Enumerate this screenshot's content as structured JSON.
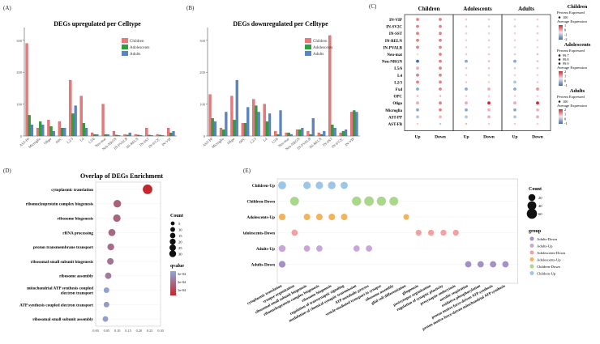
{
  "colors": {
    "children": "#e8797b",
    "adolescents": "#2e9e3e",
    "adults": "#5b84c4",
    "children_dark": "#b63a3c",
    "adolescents_dark": "#1f6e2b",
    "adults_dark": "#3c62a0",
    "dot_low": "#8ea6d6",
    "dot_high": "#c2272d",
    "scale_hi": "#d6262e",
    "scale_lo": "#3b6fb6"
  },
  "panel_labels": {
    "a": "(A)",
    "b": "(B)",
    "c": "(C)",
    "d": "(D)",
    "e": "(E)"
  },
  "chart_data": [
    {
      "id": "A",
      "type": "bar",
      "title": "DEGs upregulated per Celltype",
      "legend": [
        "Children",
        "Adolescents",
        "Adults"
      ],
      "ylim": [
        0,
        330
      ],
      "yticks": [
        0,
        100,
        200,
        300
      ],
      "categories": [
        "AST-PP",
        "Microglia",
        "Oligo",
        "OPC",
        "L2/3",
        "L4",
        "L5/6",
        "Neu-mat",
        "Neu-NRGN",
        "IN-PVALB",
        "IN-RELN",
        "IN-SST",
        "IN-SV2C",
        "IN-VIP"
      ],
      "series": [
        {
          "name": "Children",
          "values": [
            290,
            25,
            50,
            45,
            175,
            125,
            10,
            100,
            15,
            5,
            5,
            25,
            5,
            25
          ]
        },
        {
          "name": "Adolescents",
          "values": [
            65,
            45,
            30,
            25,
            70,
            40,
            5,
            5,
            3,
            3,
            3,
            3,
            3,
            10
          ]
        },
        {
          "name": "Adults",
          "values": [
            35,
            35,
            15,
            25,
            95,
            25,
            5,
            5,
            2,
            10,
            2,
            2,
            2,
            15
          ]
        }
      ]
    },
    {
      "id": "B",
      "type": "bar",
      "title": "DEGs downregulated per Celltype",
      "legend": [
        "Children",
        "Adolescents",
        "Adults"
      ],
      "ylim": [
        0,
        330
      ],
      "yticks": [
        0,
        100,
        200,
        300
      ],
      "categories": [
        "AST-PP",
        "Microglia",
        "Oligo",
        "OPC",
        "L2/3",
        "L4",
        "L5/6",
        "Neu-mat",
        "Neu-NRGN",
        "IN-PVALB",
        "IN-RELN",
        "IN-SST",
        "IN-SV2C",
        "IN-VIP"
      ],
      "series": [
        {
          "name": "Children",
          "values": [
            130,
            25,
            125,
            40,
            115,
            100,
            15,
            10,
            20,
            15,
            10,
            315,
            10,
            75
          ]
        },
        {
          "name": "Adolescents",
          "values": [
            55,
            20,
            50,
            40,
            95,
            45,
            5,
            10,
            20,
            5,
            5,
            35,
            15,
            80
          ]
        },
        {
          "name": "Adults",
          "values": [
            45,
            75,
            175,
            90,
            75,
            70,
            80,
            5,
            25,
            55,
            15,
            25,
            20,
            75
          ]
        }
      ]
    },
    {
      "id": "C",
      "type": "dotplot",
      "groups": [
        "Children",
        "Adolescents",
        "Adults"
      ],
      "columns": [
        "Up",
        "Down"
      ],
      "rows": [
        "IN-VIP",
        "IN-SV2C",
        "IN-SST",
        "IN-RELN",
        "IN-PVALB",
        "Neu-mat",
        "Neu-NRGN",
        "L5/6",
        "L4",
        "L2/3",
        "Fxd",
        "OPC",
        "Oligo",
        "Microglia",
        "AST-PP",
        "AST-FB"
      ],
      "expression": [
        [
          1,
          1,
          0.2,
          0.2,
          0.1,
          0.2
        ],
        [
          1,
          1,
          0.2,
          0.2,
          0.2,
          0.2
        ],
        [
          1,
          1,
          0.1,
          0.1,
          0.1,
          0.2
        ],
        [
          1,
          1,
          0.1,
          0.2,
          0.1,
          0.1
        ],
        [
          1,
          1,
          0.1,
          0.1,
          0.1,
          0.1
        ],
        [
          0,
          1,
          0.2,
          0.2,
          0.2,
          0.3
        ],
        [
          -2,
          1,
          -1,
          0.3,
          -1,
          0.3
        ],
        [
          0.5,
          1,
          0.2,
          0.2,
          0.2,
          0.2
        ],
        [
          1,
          1,
          0.1,
          0.1,
          0.1,
          0.1
        ],
        [
          1,
          1,
          0.2,
          0.1,
          -0.5,
          0.2
        ],
        [
          -1,
          1,
          -1,
          0.5,
          -1,
          0.8
        ],
        [
          0.3,
          0.3,
          0.1,
          0.1,
          0.1,
          0.1
        ],
        [
          0.5,
          1,
          0.5,
          2,
          0.5,
          2
        ],
        [
          -1,
          1,
          -1,
          0.4,
          -1,
          0.4
        ],
        [
          -0.5,
          0.4,
          -0.5,
          0.5,
          -0.5,
          0.5
        ],
        [
          0.1,
          -0.3,
          0.3,
          0.1,
          0.1,
          0.1
        ]
      ],
      "legend": {
        "children_title": "Children",
        "adolescents_title": "Adolescents",
        "adults_title": "Adults",
        "pct_label": "Percent Expressed",
        "avg_label": "Average Expression",
        "children_pct": [
          "100"
        ],
        "children_avg": [
          "1",
          "0",
          "-1",
          "-2"
        ],
        "adolescents_pct": [
          "99.7",
          "99.8",
          "99.9"
        ],
        "adolescents_avg": [
          "2",
          "1",
          "0",
          "-1"
        ],
        "adults_pct": [
          "100"
        ],
        "adults_avg": [
          "2",
          "1",
          "0",
          "-1"
        ]
      }
    },
    {
      "id": "D",
      "type": "scatter",
      "title": "Overlap of DEGs Enrichment",
      "terms": [
        "cytoplasmic translation",
        "ribonucleoprotein complex biogenesis",
        "ribosome biogenesis",
        "rRNA processing",
        "proton transmembrane transport",
        "ribosomal small subunit biogenesis",
        "ribosome assembly",
        "mitochondrial ATP synthesis coupled electron transport",
        "ATP synthesis coupled electron transport",
        "ribosomal small subunit assembly"
      ],
      "x": [
        0.24,
        0.1,
        0.098,
        0.075,
        0.07,
        0.068,
        0.058,
        0.05,
        0.05,
        0.045
      ],
      "count": [
        30,
        15,
        14,
        12,
        10,
        9,
        8,
        5,
        5,
        5
      ],
      "qvalue": [
        1e-07,
        0.00015,
        0.00016,
        0.00017,
        0.00018,
        0.0002,
        0.00022,
        0.00032,
        0.0003,
        0.00031
      ],
      "xticks": [
        "0.00",
        "0.05",
        "0.10",
        "0.15",
        "0.20",
        "0.25",
        "0.30"
      ],
      "xlim": [
        0,
        0.3
      ],
      "count_legend_title": "Count",
      "count_legend": [
        "5",
        "10",
        "15",
        "20",
        "25",
        "30"
      ],
      "qvalue_legend_title": "qvalue",
      "qvalue_ticks": [
        "3e-04",
        "2e-04",
        "1e-04"
      ]
    },
    {
      "id": "E",
      "type": "dotplot",
      "rows": [
        "Children-Up",
        "Children-Down",
        "Adolescents-Up",
        "Adolescents-Down",
        "Adults-Up",
        "Adults-Down"
      ],
      "terms": [
        "cytoplasmic translation",
        "synapse organization",
        "ribosomal small subunit biogenesis",
        "ribonucleoprotein complex biogenesis",
        "ribosome biogenesis",
        "regulation of transsynaptic signaling",
        "modulation of chemical synaptic transmission",
        "ATP metabolic process",
        "vesicle-mediated transport in synapse",
        "ribosome assembly",
        "glial cell differentiation",
        "gliogenesis",
        "postsynapse organization",
        "regulation of synaptic plasticity",
        "presynaptic endocytosis",
        "aerobic respiration",
        "oxidative phosphorylation",
        "proton motive force-driven ATP synthesis",
        "proton motive force-driven mitochondrial ATP synthesis"
      ],
      "dots": [
        {
          "row": 0,
          "term": 0,
          "count": 30
        },
        {
          "row": 0,
          "term": 2,
          "count": 25
        },
        {
          "row": 0,
          "term": 3,
          "count": 25
        },
        {
          "row": 0,
          "term": 4,
          "count": 28
        },
        {
          "row": 0,
          "term": 5,
          "count": 22
        },
        {
          "row": 1,
          "term": 1,
          "count": 40
        },
        {
          "row": 1,
          "term": 6,
          "count": 45
        },
        {
          "row": 1,
          "term": 7,
          "count": 50
        },
        {
          "row": 1,
          "term": 8,
          "count": 45
        },
        {
          "row": 1,
          "term": 9,
          "count": 40
        },
        {
          "row": 2,
          "term": 0,
          "count": 18
        },
        {
          "row": 2,
          "term": 2,
          "count": 16
        },
        {
          "row": 2,
          "term": 3,
          "count": 16
        },
        {
          "row": 2,
          "term": 4,
          "count": 16
        },
        {
          "row": 2,
          "term": 5,
          "count": 16
        },
        {
          "row": 2,
          "term": 10,
          "count": 10
        },
        {
          "row": 3,
          "term": 1,
          "count": 14
        },
        {
          "row": 3,
          "term": 11,
          "count": 12
        },
        {
          "row": 3,
          "term": 12,
          "count": 12
        },
        {
          "row": 3,
          "term": 13,
          "count": 12
        },
        {
          "row": 3,
          "term": 14,
          "count": 12
        },
        {
          "row": 4,
          "term": 0,
          "count": 20
        },
        {
          "row": 4,
          "term": 2,
          "count": 15
        },
        {
          "row": 4,
          "term": 3,
          "count": 15
        },
        {
          "row": 4,
          "term": 6,
          "count": 15
        },
        {
          "row": 4,
          "term": 7,
          "count": 15
        },
        {
          "row": 5,
          "term": 0,
          "count": 18
        },
        {
          "row": 5,
          "term": 15,
          "count": 15
        },
        {
          "row": 5,
          "term": 16,
          "count": 15
        },
        {
          "row": 5,
          "term": 17,
          "count": 15
        },
        {
          "row": 5,
          "term": 18,
          "count": 15
        }
      ],
      "count_legend_title": "Count",
      "count_legend": [
        "20",
        "40",
        "60"
      ],
      "group_legend_title": "group",
      "group_legend": [
        {
          "label": "Adults-Down",
          "color": "#a58fc7"
        },
        {
          "label": "Adults-Up",
          "color": "#c8a6d8"
        },
        {
          "label": "Adolescents-Down",
          "color": "#f2a0a0"
        },
        {
          "label": "Adolescents-Up",
          "color": "#f4b25b"
        },
        {
          "label": "Children-Down",
          "color": "#a9d88a"
        },
        {
          "label": "Children-Up",
          "color": "#9cc6e8"
        }
      ]
    }
  ]
}
